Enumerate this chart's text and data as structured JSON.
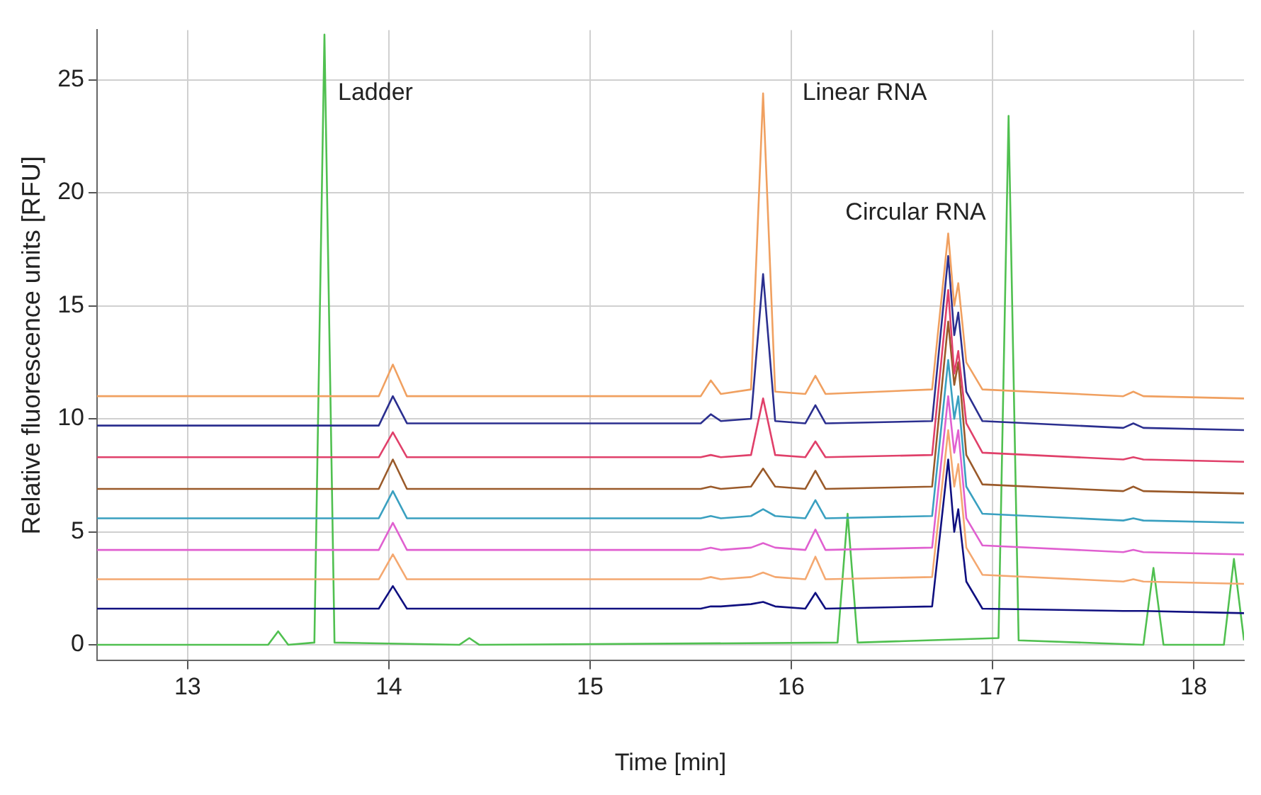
{
  "chart_data": {
    "type": "line",
    "xlabel": "Time [min]",
    "ylabel": "Relative fluorescence units [RFU]",
    "xlim": [
      12.55,
      18.25
    ],
    "xticks": [
      13,
      14,
      15,
      16,
      17,
      18
    ],
    "ylim": [
      -0.7,
      27.2
    ],
    "yticks": [
      0,
      5,
      10,
      15,
      20,
      25
    ],
    "grid": true,
    "legend": false,
    "marker": "none",
    "line_style": "solid",
    "x": [
      12.55,
      13.95,
      14.02,
      14.09,
      15.55,
      15.6,
      15.65,
      15.8,
      15.86,
      15.92,
      16.07,
      16.12,
      16.17,
      16.7,
      16.78,
      16.81,
      16.83,
      16.87,
      16.95,
      17.65,
      17.7,
      17.75,
      18.25
    ],
    "series": [
      {
        "color": "#f0a060",
        "values": [
          11.0,
          11.0,
          12.4,
          11.0,
          11.0,
          11.7,
          11.1,
          11.3,
          24.4,
          11.2,
          11.1,
          11.9,
          11.1,
          11.3,
          18.2,
          15.0,
          16.0,
          12.5,
          11.3,
          11.0,
          11.2,
          11.0,
          10.9
        ]
      },
      {
        "color": "#2b2f8f",
        "values": [
          9.7,
          9.7,
          11.0,
          9.8,
          9.8,
          10.2,
          9.9,
          10.0,
          16.4,
          9.9,
          9.8,
          10.6,
          9.8,
          9.9,
          17.2,
          13.7,
          14.7,
          11.2,
          9.9,
          9.6,
          9.8,
          9.6,
          9.5
        ]
      },
      {
        "color": "#e0406a",
        "values": [
          8.3,
          8.3,
          9.4,
          8.3,
          8.3,
          8.4,
          8.3,
          8.4,
          10.9,
          8.4,
          8.3,
          9.0,
          8.3,
          8.4,
          15.7,
          12.0,
          13.0,
          9.8,
          8.5,
          8.2,
          8.3,
          8.2,
          8.1
        ]
      },
      {
        "color": "#9a5a2a",
        "values": [
          6.9,
          6.9,
          8.2,
          6.9,
          6.9,
          7.0,
          6.9,
          7.0,
          7.8,
          7.0,
          6.9,
          7.7,
          6.9,
          7.0,
          14.3,
          11.5,
          12.5,
          8.4,
          7.1,
          6.8,
          7.0,
          6.8,
          6.7
        ]
      },
      {
        "color": "#3aa0c0",
        "values": [
          5.6,
          5.6,
          6.8,
          5.6,
          5.6,
          5.7,
          5.6,
          5.7,
          6.0,
          5.7,
          5.6,
          6.4,
          5.6,
          5.7,
          12.6,
          10.0,
          11.0,
          7.0,
          5.8,
          5.5,
          5.6,
          5.5,
          5.4
        ]
      },
      {
        "color": "#e060d0",
        "values": [
          4.2,
          4.2,
          5.4,
          4.2,
          4.2,
          4.3,
          4.2,
          4.3,
          4.5,
          4.3,
          4.2,
          5.1,
          4.2,
          4.3,
          11.0,
          8.5,
          9.5,
          5.6,
          4.4,
          4.1,
          4.2,
          4.1,
          4.0
        ]
      },
      {
        "color": "#f4a870",
        "values": [
          2.9,
          2.9,
          4.0,
          2.9,
          2.9,
          3.0,
          2.9,
          3.0,
          3.2,
          3.0,
          2.9,
          3.9,
          2.9,
          3.0,
          9.5,
          7.0,
          8.0,
          4.3,
          3.1,
          2.8,
          2.9,
          2.8,
          2.7
        ]
      },
      {
        "color": "#101080",
        "values": [
          1.6,
          1.6,
          2.6,
          1.6,
          1.6,
          1.7,
          1.7,
          1.8,
          1.9,
          1.7,
          1.6,
          2.3,
          1.6,
          1.7,
          8.2,
          5.0,
          6.0,
          2.8,
          1.6,
          1.5,
          1.5,
          1.5,
          1.4
        ]
      },
      {
        "color": "#50c050",
        "x": [
          12.55,
          13.4,
          13.45,
          13.5,
          13.63,
          13.68,
          13.73,
          14.35,
          14.4,
          14.45,
          16.23,
          16.28,
          16.33,
          17.03,
          17.08,
          17.13,
          17.75,
          17.8,
          17.85,
          18.15,
          18.2,
          18.25
        ],
        "values": [
          0,
          0,
          0.6,
          0,
          0.1,
          27.0,
          0.1,
          0,
          0.3,
          0,
          0.1,
          5.8,
          0.1,
          0.3,
          23.4,
          0.2,
          0,
          3.4,
          0,
          0,
          3.8,
          0.2
        ]
      }
    ],
    "annotations": [
      "Ladder",
      "Linear RNA",
      "Circular RNA"
    ]
  }
}
